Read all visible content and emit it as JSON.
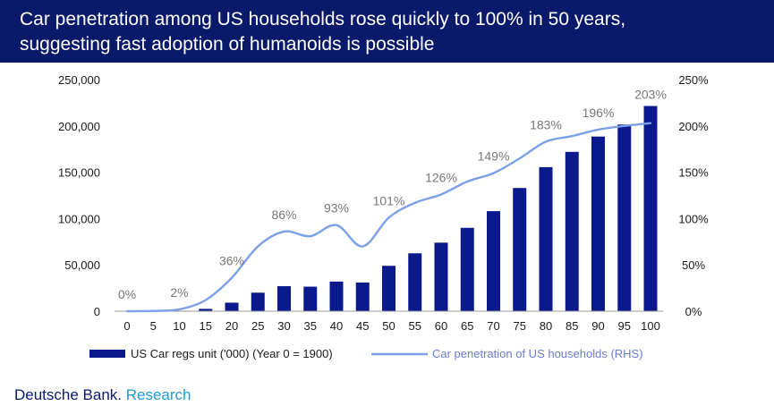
{
  "header": {
    "title_line1": "Car penetration among US households rose quickly to 100% in 50 years,",
    "title_line2": "suggesting fast adoption of humanoids is possible"
  },
  "footer": {
    "brand": "Deutsche Bank.",
    "division": "Research"
  },
  "colors": {
    "banner": "#0a1a6b",
    "bars": "#0a1a8c",
    "line": "#7b9fe8",
    "research": "#1e9bd7"
  },
  "chart_data": {
    "type": "bar+line",
    "categories": [
      "0",
      "5",
      "10",
      "15",
      "20",
      "25",
      "30",
      "35",
      "40",
      "45",
      "50",
      "55",
      "60",
      "65",
      "70",
      "75",
      "80",
      "85",
      "90",
      "95",
      "100"
    ],
    "series": [
      {
        "name": "US Car regs unit ('000) (Year 0 = 1900)",
        "type": "bar",
        "axis": "left",
        "values": [
          0,
          0,
          500,
          2500,
          9200,
          20000,
          27000,
          26500,
          32000,
          31000,
          49000,
          62500,
          74000,
          90000,
          108000,
          133000,
          155500,
          172000,
          188500,
          201500,
          221500
        ]
      },
      {
        "name": "Car penetration of US households (RHS)",
        "type": "line",
        "axis": "right",
        "values": [
          0,
          0.3,
          2,
          12,
          36,
          70,
          86,
          81,
          93,
          70,
          101,
          117,
          126,
          140,
          149,
          165,
          183,
          189,
          196,
          200,
          203
        ]
      }
    ],
    "data_labels": [
      {
        "index": 0,
        "text": "0%"
      },
      {
        "index": 2,
        "text": "2%"
      },
      {
        "index": 4,
        "text": "36%"
      },
      {
        "index": 6,
        "text": "86%"
      },
      {
        "index": 8,
        "text": "93%"
      },
      {
        "index": 10,
        "text": "101%"
      },
      {
        "index": 12,
        "text": "126%"
      },
      {
        "index": 14,
        "text": "149%"
      },
      {
        "index": 16,
        "text": "183%"
      },
      {
        "index": 18,
        "text": "196%"
      },
      {
        "index": 20,
        "text": "203%"
      }
    ],
    "y_left": {
      "min": 0,
      "max": 250000,
      "ticks": [
        0,
        50000,
        100000,
        150000,
        200000,
        250000
      ],
      "tick_labels": [
        "0",
        "50,000",
        "100,000",
        "150,000",
        "200,000",
        "250,000"
      ]
    },
    "y_right": {
      "min": 0,
      "max": 250,
      "ticks": [
        0,
        50,
        100,
        150,
        200,
        250
      ],
      "tick_labels": [
        "0%",
        "50%",
        "100%",
        "150%",
        "200%",
        "250%"
      ]
    },
    "legend": {
      "placement": "bottom",
      "bar_label": "US Car regs unit ('000) (Year 0 = 1900)",
      "line_label": "Car penetration of US households (RHS)"
    },
    "grid": false
  }
}
